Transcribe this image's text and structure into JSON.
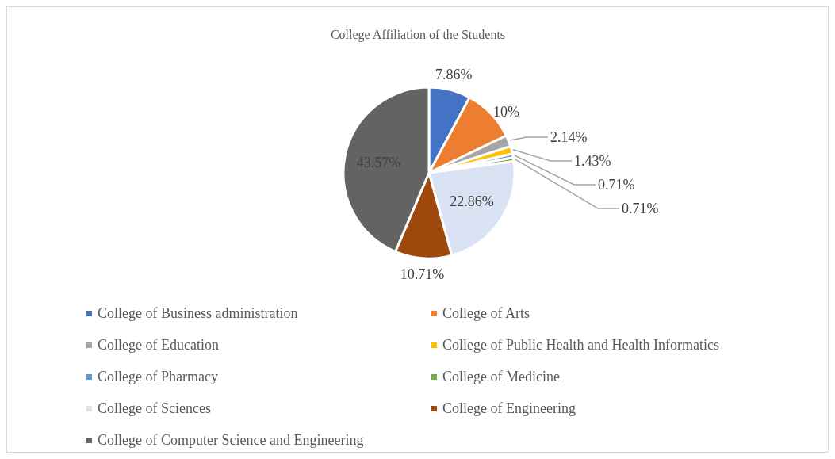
{
  "chart_data": {
    "type": "pie",
    "title": "College Affiliation of the Students",
    "categories": [
      "College of Business administration",
      "College of Arts",
      "College of Education",
      "College of Public Health and Health Informatics",
      "College of Pharmacy",
      "College of Medicine",
      "College of Sciences",
      "College of Engineering",
      "College of Computer Science and Engineering"
    ],
    "values": [
      7.86,
      10,
      2.14,
      1.43,
      0.71,
      0.71,
      22.86,
      10.71,
      43.57
    ],
    "colors": [
      "#4472c4",
      "#ed7d31",
      "#a5a5a5",
      "#ffc000",
      "#5b9bd5",
      "#70ad47",
      "#dae3f3",
      "#9e480e",
      "#636363"
    ],
    "value_labels": [
      "7.86%",
      "10%",
      "2.14%",
      "1.43%",
      "0.71%",
      "0.71%",
      "22.86%",
      "10.71%",
      "43.57%"
    ],
    "legend": "bottom"
  }
}
